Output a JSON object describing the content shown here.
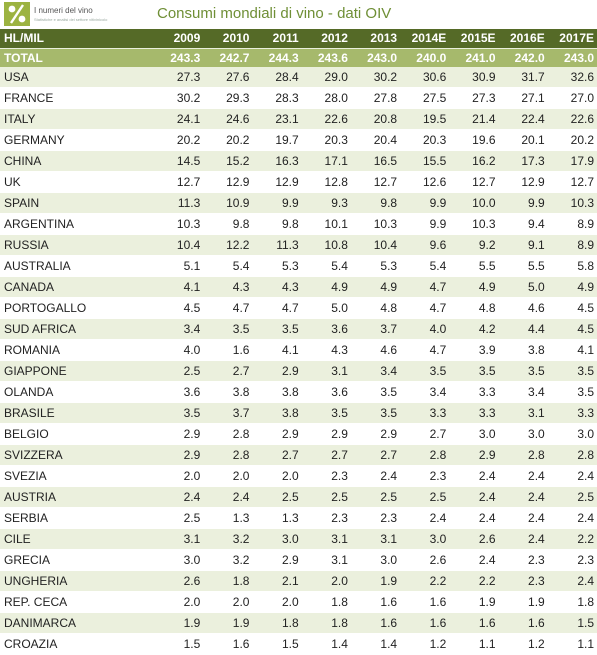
{
  "logo": {
    "name": "I numeri del vino",
    "tagline": "Statistiche e analisi del settore vitivinicolo"
  },
  "title": "Consumi mondiali di vino - dati OIV",
  "header": {
    "unit_label": "HL/MIL",
    "years": [
      "2009",
      "2010",
      "2011",
      "2012",
      "2013",
      "2014E",
      "2015E",
      "2016E",
      "2017E"
    ]
  },
  "total": {
    "label": "TOTAL",
    "values": [
      "243.3",
      "242.7",
      "244.3",
      "243.6",
      "243.0",
      "240.0",
      "241.0",
      "242.0",
      "243.0"
    ]
  },
  "rows": [
    {
      "country": "USA",
      "values": [
        "27.3",
        "27.6",
        "28.4",
        "29.0",
        "30.2",
        "30.6",
        "30.9",
        "31.7",
        "32.6"
      ]
    },
    {
      "country": "FRANCE",
      "values": [
        "30.2",
        "29.3",
        "28.3",
        "28.0",
        "27.8",
        "27.5",
        "27.3",
        "27.1",
        "27.0"
      ]
    },
    {
      "country": "ITALY",
      "values": [
        "24.1",
        "24.6",
        "23.1",
        "22.6",
        "20.8",
        "19.5",
        "21.4",
        "22.4",
        "22.6"
      ]
    },
    {
      "country": "GERMANY",
      "values": [
        "20.2",
        "20.2",
        "19.7",
        "20.3",
        "20.4",
        "20.3",
        "19.6",
        "20.1",
        "20.2"
      ]
    },
    {
      "country": "CHINA",
      "values": [
        "14.5",
        "15.2",
        "16.3",
        "17.1",
        "16.5",
        "15.5",
        "16.2",
        "17.3",
        "17.9"
      ]
    },
    {
      "country": "UK",
      "values": [
        "12.7",
        "12.9",
        "12.9",
        "12.8",
        "12.7",
        "12.6",
        "12.7",
        "12.9",
        "12.7"
      ]
    },
    {
      "country": "SPAIN",
      "values": [
        "11.3",
        "10.9",
        "9.9",
        "9.3",
        "9.8",
        "9.9",
        "10.0",
        "9.9",
        "10.3"
      ]
    },
    {
      "country": "ARGENTINA",
      "values": [
        "10.3",
        "9.8",
        "9.8",
        "10.1",
        "10.3",
        "9.9",
        "10.3",
        "9.4",
        "8.9"
      ]
    },
    {
      "country": "RUSSIA",
      "values": [
        "10.4",
        "12.2",
        "11.3",
        "10.8",
        "10.4",
        "9.6",
        "9.2",
        "9.1",
        "8.9"
      ]
    },
    {
      "country": "AUSTRALIA",
      "values": [
        "5.1",
        "5.4",
        "5.3",
        "5.4",
        "5.3",
        "5.4",
        "5.5",
        "5.5",
        "5.8"
      ]
    },
    {
      "country": "CANADA",
      "values": [
        "4.1",
        "4.3",
        "4.3",
        "4.9",
        "4.9",
        "4.7",
        "4.9",
        "5.0",
        "4.9"
      ]
    },
    {
      "country": "PORTOGALLO",
      "values": [
        "4.5",
        "4.7",
        "4.7",
        "5.0",
        "4.8",
        "4.7",
        "4.8",
        "4.6",
        "4.5"
      ]
    },
    {
      "country": "SUD AFRICA",
      "values": [
        "3.4",
        "3.5",
        "3.5",
        "3.6",
        "3.7",
        "4.0",
        "4.2",
        "4.4",
        "4.5"
      ]
    },
    {
      "country": "ROMANIA",
      "values": [
        "4.0",
        "1.6",
        "4.1",
        "4.3",
        "4.6",
        "4.7",
        "3.9",
        "3.8",
        "4.1"
      ]
    },
    {
      "country": "GIAPPONE",
      "values": [
        "2.5",
        "2.7",
        "2.9",
        "3.1",
        "3.4",
        "3.5",
        "3.5",
        "3.5",
        "3.5"
      ]
    },
    {
      "country": "OLANDA",
      "values": [
        "3.6",
        "3.8",
        "3.8",
        "3.6",
        "3.5",
        "3.4",
        "3.3",
        "3.4",
        "3.5"
      ]
    },
    {
      "country": "BRASILE",
      "values": [
        "3.5",
        "3.7",
        "3.8",
        "3.5",
        "3.5",
        "3.3",
        "3.3",
        "3.1",
        "3.3"
      ]
    },
    {
      "country": "BELGIO",
      "values": [
        "2.9",
        "2.8",
        "2.9",
        "2.9",
        "2.9",
        "2.7",
        "3.0",
        "3.0",
        "3.0"
      ]
    },
    {
      "country": "SVIZZERA",
      "values": [
        "2.9",
        "2.8",
        "2.7",
        "2.7",
        "2.7",
        "2.8",
        "2.9",
        "2.8",
        "2.8"
      ]
    },
    {
      "country": "SVEZIA",
      "values": [
        "2.0",
        "2.0",
        "2.0",
        "2.3",
        "2.4",
        "2.3",
        "2.4",
        "2.4",
        "2.4"
      ]
    },
    {
      "country": "AUSTRIA",
      "values": [
        "2.4",
        "2.4",
        "2.5",
        "2.5",
        "2.5",
        "2.5",
        "2.4",
        "2.4",
        "2.5"
      ]
    },
    {
      "country": "SERBIA",
      "values": [
        "2.5",
        "1.3",
        "1.3",
        "2.3",
        "2.3",
        "2.4",
        "2.4",
        "2.4",
        "2.4"
      ]
    },
    {
      "country": "CILE",
      "values": [
        "3.1",
        "3.2",
        "3.0",
        "3.1",
        "3.1",
        "3.0",
        "2.6",
        "2.4",
        "2.2"
      ]
    },
    {
      "country": "GRECIA",
      "values": [
        "3.0",
        "3.2",
        "2.9",
        "3.1",
        "3.0",
        "2.6",
        "2.4",
        "2.3",
        "2.3"
      ]
    },
    {
      "country": "UNGHERIA",
      "values": [
        "2.6",
        "1.8",
        "2.1",
        "2.0",
        "1.9",
        "2.2",
        "2.2",
        "2.3",
        "2.4"
      ]
    },
    {
      "country": "REP. CECA",
      "values": [
        "2.0",
        "2.0",
        "2.0",
        "1.8",
        "1.6",
        "1.6",
        "1.9",
        "1.9",
        "1.8"
      ]
    },
    {
      "country": "DANIMARCA",
      "values": [
        "1.9",
        "1.9",
        "1.8",
        "1.8",
        "1.6",
        "1.6",
        "1.6",
        "1.6",
        "1.5"
      ]
    },
    {
      "country": "CROAZIA",
      "values": [
        "1.5",
        "1.6",
        "1.5",
        "1.4",
        "1.4",
        "1.2",
        "1.1",
        "1.2",
        "1.1"
      ]
    }
  ]
}
